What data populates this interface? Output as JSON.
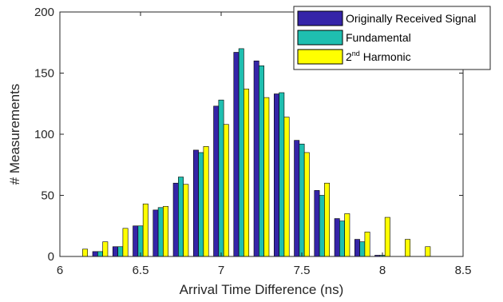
{
  "chart_data": {
    "type": "bar",
    "xlabel": "Arrival Time Difference (ns)",
    "ylabel": "# Measurements",
    "xlim": [
      6,
      8.5
    ],
    "ylim": [
      0,
      200
    ],
    "xticks": [
      "6",
      "6.5",
      "7",
      "7.5",
      "8",
      "8.5"
    ],
    "yticks": [
      "0",
      "50",
      "100",
      "150",
      "200"
    ],
    "grid": false,
    "legend_position": "top-right",
    "bin_centers": [
      6.125,
      6.25,
      6.375,
      6.5,
      6.625,
      6.75,
      6.875,
      7.0,
      7.125,
      7.25,
      7.375,
      7.5,
      7.625,
      7.75,
      7.875,
      8.0,
      8.125,
      8.25,
      8.375
    ],
    "series": [
      {
        "name": "Originally Received Signal",
        "color": "#3524a8",
        "values": [
          0,
          4,
          8,
          25,
          38,
          60,
          87,
          123,
          167,
          160,
          133,
          95,
          54,
          31,
          14,
          1,
          0,
          0,
          0
        ]
      },
      {
        "name": "Fundamental",
        "color": "#1fbfb0",
        "values": [
          0,
          4,
          8,
          25,
          40,
          65,
          85,
          128,
          170,
          156,
          134,
          92,
          50,
          29,
          12,
          1,
          0,
          0,
          0
        ]
      },
      {
        "name_main": "2",
        "name_sup": "nd",
        "name_rest": " Harmonic",
        "color": "#ffff00",
        "values": [
          6,
          12,
          23,
          43,
          41,
          59,
          90,
          108,
          137,
          130,
          114,
          85,
          60,
          35,
          20,
          32,
          14,
          8,
          0
        ]
      }
    ]
  }
}
